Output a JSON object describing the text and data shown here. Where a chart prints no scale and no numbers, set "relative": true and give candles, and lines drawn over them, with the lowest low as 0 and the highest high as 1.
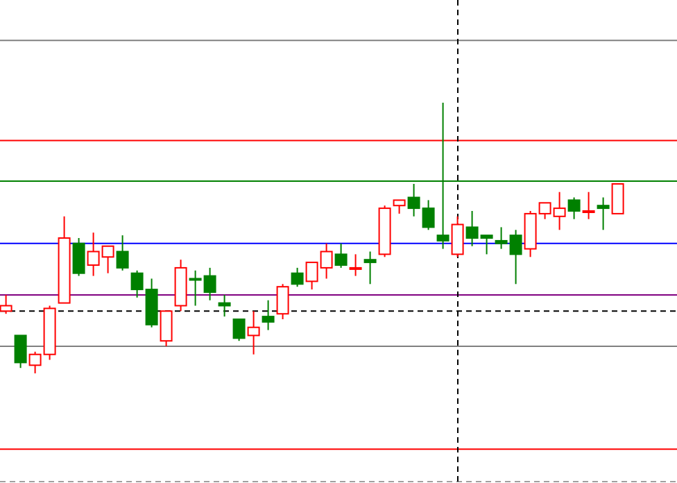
{
  "chart_data": {
    "type": "candlestick",
    "relative": true,
    "categories": [
      null,
      null,
      null,
      null,
      null,
      null,
      null,
      null,
      null,
      null,
      null,
      null,
      null,
      null,
      null,
      null,
      null,
      null,
      null,
      null,
      null,
      null,
      null,
      null,
      null,
      null,
      null,
      null,
      null,
      null,
      null,
      null,
      null,
      null,
      null,
      null,
      null,
      null,
      null,
      null,
      null,
      null,
      null
    ],
    "ohlc": [
      [
        0.23,
        0.29,
        0.22,
        0.25
      ],
      [
        0.14,
        0.14,
        0.02,
        0.04
      ],
      [
        0.03,
        0.08,
        0,
        0.07
      ],
      [
        0.07,
        0.25,
        0.05,
        0.24
      ],
      [
        0.26,
        0.58,
        0.26,
        0.5
      ],
      [
        0.48,
        0.5,
        0.36,
        0.37
      ],
      [
        0.4,
        0.52,
        0.36,
        0.45
      ],
      [
        0.43,
        0.47,
        0.37,
        0.47
      ],
      [
        0.45,
        0.51,
        0.38,
        0.39
      ],
      [
        0.37,
        0.38,
        0.28,
        0.31
      ],
      [
        0.31,
        0.35,
        0.17,
        0.18
      ],
      [
        0.12,
        0.23,
        0.1,
        0.23
      ],
      [
        0.25,
        0.42,
        0.23,
        0.39
      ],
      [
        0.35,
        0.38,
        0.25,
        0.35
      ],
      [
        0.36,
        0.39,
        0.27,
        0.3
      ],
      [
        0.26,
        0.29,
        0.21,
        0.25
      ],
      [
        0.2,
        0.2,
        0.12,
        0.13
      ],
      [
        0.14,
        0.23,
        0.07,
        0.17
      ],
      [
        0.21,
        0.27,
        0.16,
        0.19
      ],
      [
        0.22,
        0.33,
        0.2,
        0.32
      ],
      [
        0.37,
        0.39,
        0.32,
        0.33
      ],
      [
        0.34,
        0.41,
        0.31,
        0.41
      ],
      [
        0.39,
        0.48,
        0.35,
        0.45
      ],
      [
        0.44,
        0.48,
        0.39,
        0.4
      ],
      [
        0.39,
        0.44,
        0.36,
        0.39
      ],
      [
        0.42,
        0.45,
        0.33,
        0.41
      ],
      [
        0.44,
        0.62,
        0.43,
        0.61
      ],
      [
        0.62,
        0.64,
        0.59,
        0.64
      ],
      [
        0.65,
        0.7,
        0.58,
        0.61
      ],
      [
        0.61,
        0.64,
        0.53,
        0.54
      ],
      [
        0.51,
        1,
        0.46,
        0.49
      ],
      [
        0.44,
        0.58,
        0.43,
        0.55
      ],
      [
        0.54,
        0.6,
        0.47,
        0.5
      ],
      [
        0.51,
        0.51,
        0.44,
        0.5
      ],
      [
        0.49,
        0.54,
        0.46,
        0.48
      ],
      [
        0.51,
        0.53,
        0.33,
        0.44
      ],
      [
        0.46,
        0.6,
        0.43,
        0.59
      ],
      [
        0.59,
        0.63,
        0.57,
        0.63
      ],
      [
        0.58,
        0.67,
        0.53,
        0.61
      ],
      [
        0.64,
        0.65,
        0.57,
        0.6
      ],
      [
        0.6,
        0.67,
        0.57,
        0.6
      ],
      [
        0.62,
        0.65,
        0.53,
        0.61
      ],
      [
        0.59,
        0.7,
        0.59,
        0.7
      ]
    ],
    "colors": [
      "#ff0000",
      "#008000",
      "#ff0000",
      "#ff0000",
      "#ff0000",
      "#008000",
      "#ff0000",
      "#ff0000",
      "#008000",
      "#008000",
      "#008000",
      "#ff0000",
      "#ff0000",
      "#008000",
      "#008000",
      "#008000",
      "#008000",
      "#ff0000",
      "#008000",
      "#ff0000",
      "#008000",
      "#ff0000",
      "#ff0000",
      "#008000",
      "#ff0000",
      "#008000",
      "#ff0000",
      "#ff0000",
      "#008000",
      "#008000",
      "#008000",
      "#ff0000",
      "#008000",
      "#008000",
      "#008000",
      "#008000",
      "#ff0000",
      "#ff0000",
      "#ff0000",
      "#008000",
      "#ff0000",
      "#008000",
      "#ff0000"
    ],
    "ref_lines": [
      {
        "axis": "y",
        "value": 1.23,
        "color": "#808080"
      },
      {
        "axis": "y",
        "value": 0.86,
        "color": "#ff0000"
      },
      {
        "axis": "y",
        "value": 0.71,
        "color": "#008000"
      },
      {
        "axis": "y",
        "value": 0.48,
        "color": "#0000ff"
      },
      {
        "axis": "y",
        "value": 0.29,
        "color": "#800080"
      },
      {
        "axis": "y",
        "value": 0.23,
        "color": "#000000",
        "line_style": "dashed"
      },
      {
        "axis": "y",
        "value": 0.1,
        "color": "#808080"
      },
      {
        "axis": "y",
        "value": -0.28,
        "color": "#ff0000"
      },
      {
        "axis": "y",
        "value": -0.4,
        "color": "#a0a0a0",
        "line_style": "dashed"
      }
    ]
  }
}
